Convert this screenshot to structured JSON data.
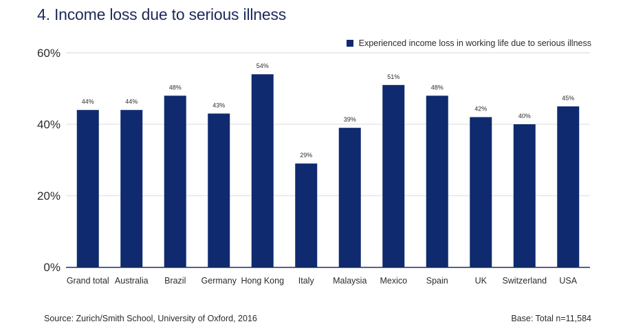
{
  "title": "4. Income loss due to serious illness",
  "legend_label": "Experienced income loss in working life due to serious illness",
  "source": "Source: Zurich/Smith School, University of Oxford, 2016",
  "base": "Base: Total n=11,584",
  "colors": {
    "bar": "#0f2a6e",
    "grid": "#d9d9d9",
    "axis": "#1c2a5a",
    "text": "#2b2b2b"
  },
  "chart_data": {
    "type": "bar",
    "title": "4. Income loss due to serious illness",
    "xlabel": "",
    "ylabel": "",
    "categories": [
      "Grand total",
      "Australia",
      "Brazil",
      "Germany",
      "Hong Kong",
      "Italy",
      "Malaysia",
      "Mexico",
      "Spain",
      "UK",
      "Switzerland",
      "USA"
    ],
    "series": [
      {
        "name": "Experienced income loss in working life due to serious illness",
        "values": [
          44,
          44,
          48,
          43,
          54,
          29,
          39,
          51,
          48,
          42,
          40,
          45
        ]
      }
    ],
    "data_labels": [
      "44%",
      "44%",
      "48%",
      "43%",
      "54%",
      "29%",
      "39%",
      "51%",
      "48%",
      "42%",
      "40%",
      "45%"
    ],
    "ylim": [
      0,
      60
    ],
    "yticks": [
      0,
      20,
      40,
      60
    ],
    "ytick_labels": [
      "0%",
      "20%",
      "40%",
      "60%"
    ],
    "grid": true,
    "legend_position": "top-right"
  }
}
